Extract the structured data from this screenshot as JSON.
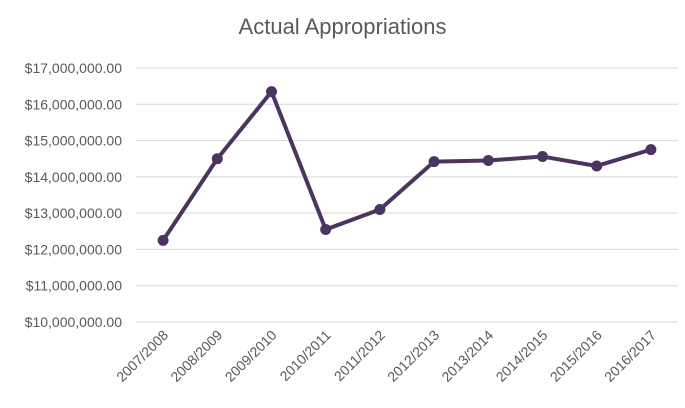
{
  "chart_data": {
    "type": "line",
    "title": "Actual Appropriations",
    "xlabel": "",
    "ylabel": "",
    "categories": [
      "2007/2008",
      "2008/2009",
      "2009/2010",
      "2010/2011",
      "2011/2012",
      "2012/2013",
      "2013/2014",
      "2014/2015",
      "2015/2016",
      "2016/2017"
    ],
    "series": [
      {
        "values": [
          12250000,
          14500000,
          16350000,
          12550000,
          13100000,
          14420000,
          14450000,
          14560000,
          14300000,
          14750000
        ],
        "color": "#4b3560"
      }
    ],
    "ylim": [
      10000000,
      17000000
    ],
    "yticks": [
      10000000,
      11000000,
      12000000,
      13000000,
      14000000,
      15000000,
      16000000,
      17000000
    ],
    "ytick_labels": [
      "$10,000,000.00",
      "$11,000,000.00",
      "$12,000,000.00",
      "$13,000,000.00",
      "$14,000,000.00",
      "$15,000,000.00",
      "$16,000,000.00",
      "$17,000,000.00"
    ],
    "grid": true,
    "legend": "none"
  }
}
